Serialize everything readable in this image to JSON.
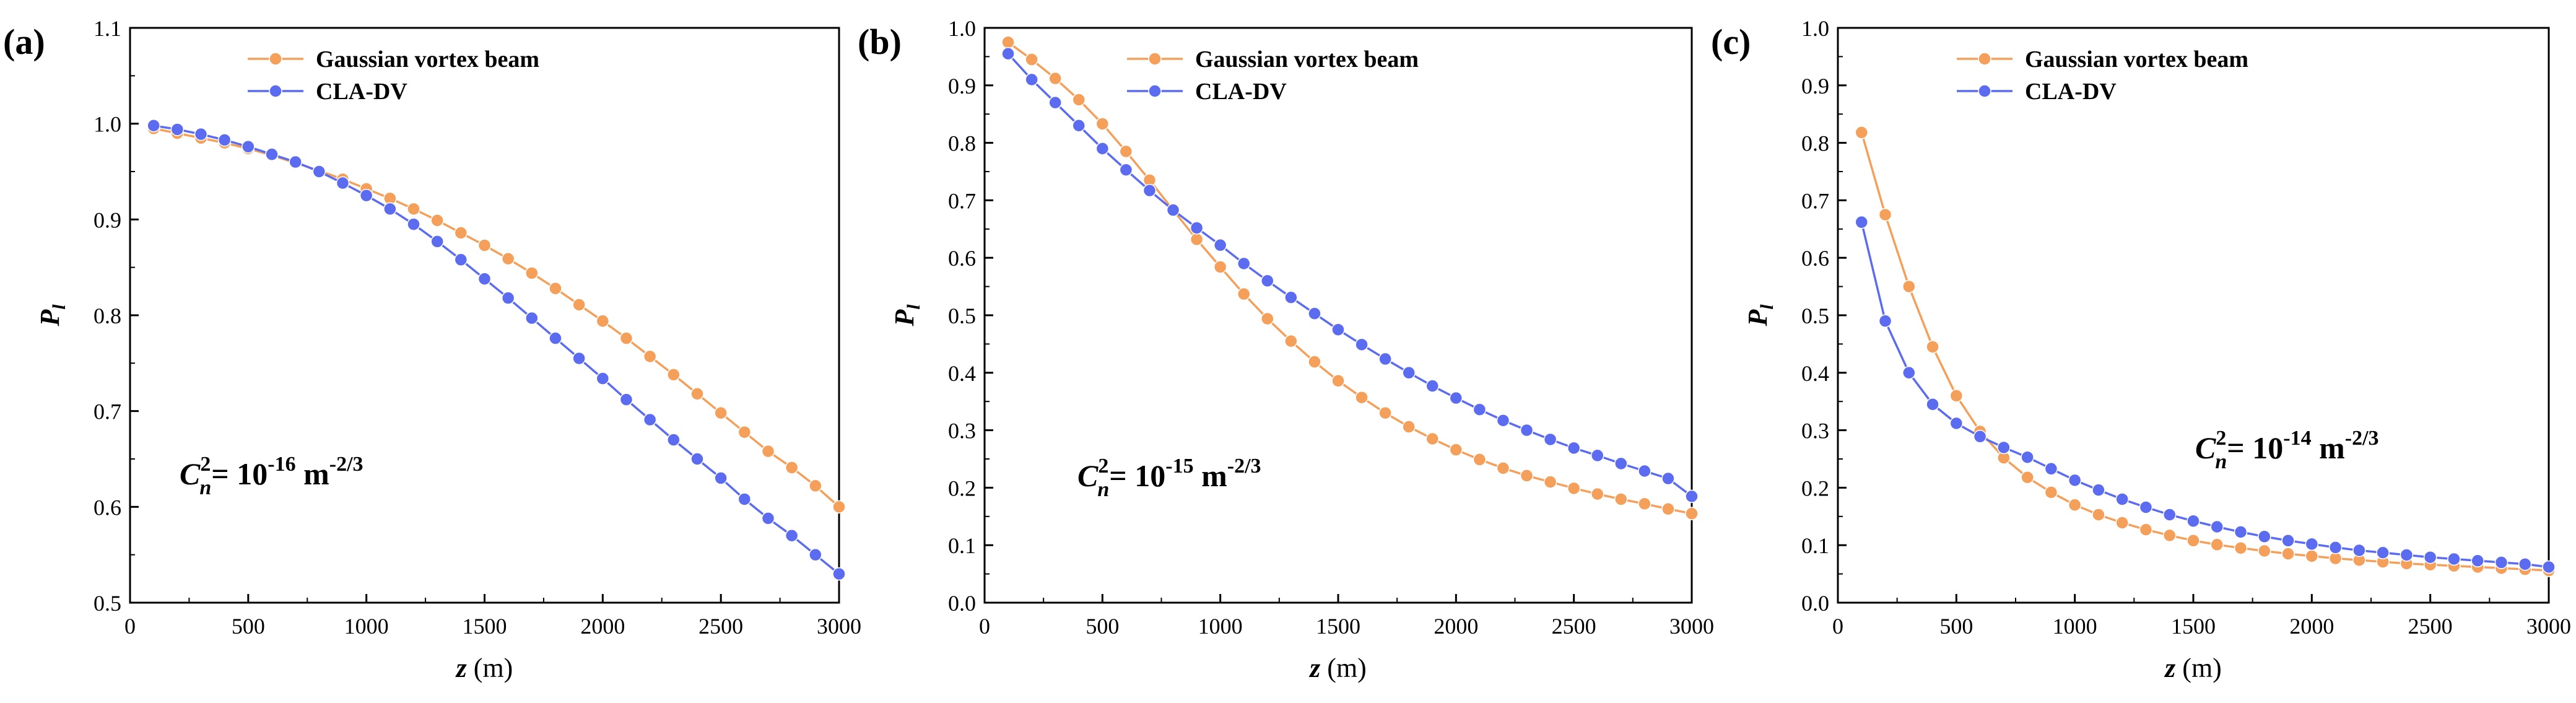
{
  "chart_data": [
    {
      "type": "line",
      "panel_label": "(a)",
      "xlabel_var": "z",
      "xlabel_unit": " (m)",
      "ylabel_main": "P",
      "ylabel_sub": "l",
      "xlim": [
        0,
        3000
      ],
      "ylim": [
        0.5,
        1.1
      ],
      "xticks": [
        0,
        500,
        1000,
        1500,
        2000,
        2500,
        3000
      ],
      "yticks": [
        0.5,
        0.6,
        0.7,
        0.8,
        0.9,
        1.0,
        1.1
      ],
      "ytick_labels": [
        "0.5",
        "0.6",
        "0.7",
        "0.8",
        "0.9",
        "1.0",
        "1.1"
      ],
      "legend_position": "top-center",
      "annotation": {
        "base": "C",
        "sub": "n",
        "sup": "2",
        "equals": "= 10",
        "exp": "-16",
        "unit": " m",
        "unit_exp": "-2/3"
      },
      "x": [
        100,
        200,
        300,
        400,
        500,
        600,
        700,
        800,
        900,
        1000,
        1100,
        1200,
        1300,
        1400,
        1500,
        1600,
        1700,
        1800,
        1900,
        2000,
        2100,
        2200,
        2300,
        2400,
        2500,
        2600,
        2700,
        2800,
        2900,
        3000
      ],
      "series": [
        {
          "name": "Gaussian vortex beam",
          "color": "#f5a05a",
          "values": [
            0.995,
            0.99,
            0.985,
            0.98,
            0.974,
            0.967,
            0.959,
            0.951,
            0.942,
            0.932,
            0.922,
            0.911,
            0.899,
            0.886,
            0.873,
            0.859,
            0.844,
            0.828,
            0.811,
            0.794,
            0.776,
            0.757,
            0.738,
            0.718,
            0.698,
            0.678,
            0.658,
            0.641,
            0.622,
            0.6
          ]
        },
        {
          "name": "CLA-DV",
          "color": "#5b6cf0",
          "values": [
            0.998,
            0.994,
            0.989,
            0.983,
            0.976,
            0.968,
            0.96,
            0.95,
            0.938,
            0.925,
            0.911,
            0.895,
            0.877,
            0.858,
            0.838,
            0.818,
            0.797,
            0.776,
            0.755,
            0.734,
            0.712,
            0.691,
            0.67,
            0.65,
            0.63,
            0.608,
            0.588,
            0.57,
            0.55,
            0.53
          ]
        }
      ]
    },
    {
      "type": "line",
      "panel_label": "(b)",
      "xlabel_var": "z",
      "xlabel_unit": " (m)",
      "ylabel_main": "P",
      "ylabel_sub": "l",
      "xlim": [
        0,
        3000
      ],
      "ylim": [
        0.0,
        1.0
      ],
      "xticks": [
        0,
        500,
        1000,
        1500,
        2000,
        2500,
        3000
      ],
      "yticks": [
        0.0,
        0.1,
        0.2,
        0.3,
        0.4,
        0.5,
        0.6,
        0.7,
        0.8,
        0.9,
        1.0
      ],
      "ytick_labels": [
        "0.0",
        "0.1",
        "0.2",
        "0.3",
        "0.4",
        "0.5",
        "0.6",
        "0.7",
        "0.8",
        "0.9",
        "1.0"
      ],
      "legend_position": "top-center",
      "annotation": {
        "base": "C",
        "sub": "n",
        "sup": "2",
        "equals": "= 10",
        "exp": "-15",
        "unit": " m",
        "unit_exp": "-2/3"
      },
      "x": [
        100,
        200,
        300,
        400,
        500,
        600,
        700,
        800,
        900,
        1000,
        1100,
        1200,
        1300,
        1400,
        1500,
        1600,
        1700,
        1800,
        1900,
        2000,
        2100,
        2200,
        2300,
        2400,
        2500,
        2600,
        2700,
        2800,
        2900,
        3000
      ],
      "series": [
        {
          "name": "Gaussian vortex beam",
          "color": "#f5a05a",
          "values": [
            0.975,
            0.945,
            0.912,
            0.875,
            0.833,
            0.785,
            0.735,
            0.683,
            0.632,
            0.584,
            0.537,
            0.494,
            0.455,
            0.419,
            0.386,
            0.357,
            0.33,
            0.306,
            0.285,
            0.266,
            0.249,
            0.234,
            0.221,
            0.21,
            0.199,
            0.189,
            0.18,
            0.172,
            0.163,
            0.155
          ]
        },
        {
          "name": "CLA-DV",
          "color": "#5b6cf0",
          "values": [
            0.955,
            0.91,
            0.87,
            0.83,
            0.79,
            0.753,
            0.717,
            0.683,
            0.652,
            0.622,
            0.59,
            0.56,
            0.531,
            0.503,
            0.475,
            0.449,
            0.424,
            0.4,
            0.377,
            0.356,
            0.336,
            0.317,
            0.3,
            0.284,
            0.269,
            0.256,
            0.242,
            0.229,
            0.216,
            0.185
          ]
        }
      ]
    },
    {
      "type": "line",
      "panel_label": "(c)",
      "xlabel_var": "z",
      "xlabel_unit": " (m)",
      "ylabel_main": "P",
      "ylabel_sub": "l",
      "xlim": [
        0,
        3000
      ],
      "ylim": [
        0.0,
        1.0
      ],
      "xticks": [
        0,
        500,
        1000,
        1500,
        2000,
        2500,
        3000
      ],
      "yticks": [
        0.0,
        0.1,
        0.2,
        0.3,
        0.4,
        0.5,
        0.6,
        0.7,
        0.8,
        0.9,
        1.0
      ],
      "ytick_labels": [
        "0.0",
        "0.1",
        "0.2",
        "0.3",
        "0.4",
        "0.5",
        "0.6",
        "0.7",
        "0.8",
        "0.9",
        "1.0"
      ],
      "legend_position": "top-center",
      "annotation": {
        "base": "C",
        "sub": "n",
        "sup": "2",
        "equals": "= 10",
        "exp": "-14",
        "unit": " m",
        "unit_exp": "-2/3"
      },
      "x": [
        100,
        200,
        300,
        400,
        500,
        600,
        700,
        800,
        900,
        1000,
        1100,
        1200,
        1300,
        1400,
        1500,
        1600,
        1700,
        1800,
        1900,
        2000,
        2100,
        2200,
        2300,
        2400,
        2500,
        2600,
        2700,
        2800,
        2900,
        3000
      ],
      "series": [
        {
          "name": "Gaussian vortex beam",
          "color": "#f5a05a",
          "values": [
            0.818,
            0.675,
            0.55,
            0.445,
            0.36,
            0.298,
            0.252,
            0.218,
            0.192,
            0.17,
            0.153,
            0.139,
            0.127,
            0.117,
            0.108,
            0.101,
            0.095,
            0.09,
            0.085,
            0.081,
            0.077,
            0.074,
            0.071,
            0.068,
            0.066,
            0.064,
            0.062,
            0.06,
            0.058,
            0.056
          ]
        },
        {
          "name": "CLA-DV",
          "color": "#5b6cf0",
          "values": [
            0.662,
            0.49,
            0.4,
            0.345,
            0.312,
            0.289,
            0.27,
            0.253,
            0.233,
            0.213,
            0.196,
            0.18,
            0.166,
            0.153,
            0.142,
            0.132,
            0.123,
            0.115,
            0.108,
            0.102,
            0.096,
            0.091,
            0.087,
            0.083,
            0.079,
            0.076,
            0.073,
            0.07,
            0.067,
            0.062
          ]
        }
      ]
    }
  ]
}
